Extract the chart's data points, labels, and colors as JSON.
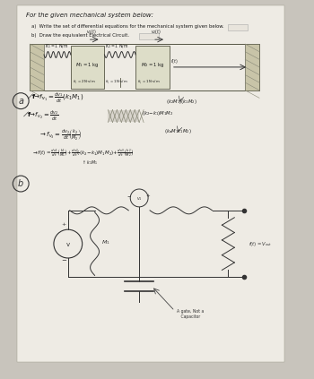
{
  "bg_color": "#c8c4bc",
  "paper_color": "#eeebe4",
  "title": "For the given mechanical system below:",
  "part_a": "a)  Write the set of differential equations for the mechanical system given below.",
  "part_b": "b)  Draw the equivalent Electrical Circuit.",
  "note_gate": "A gate, Not a\n   Capacitor",
  "note_fout": "$f(t)=V_{out}$"
}
